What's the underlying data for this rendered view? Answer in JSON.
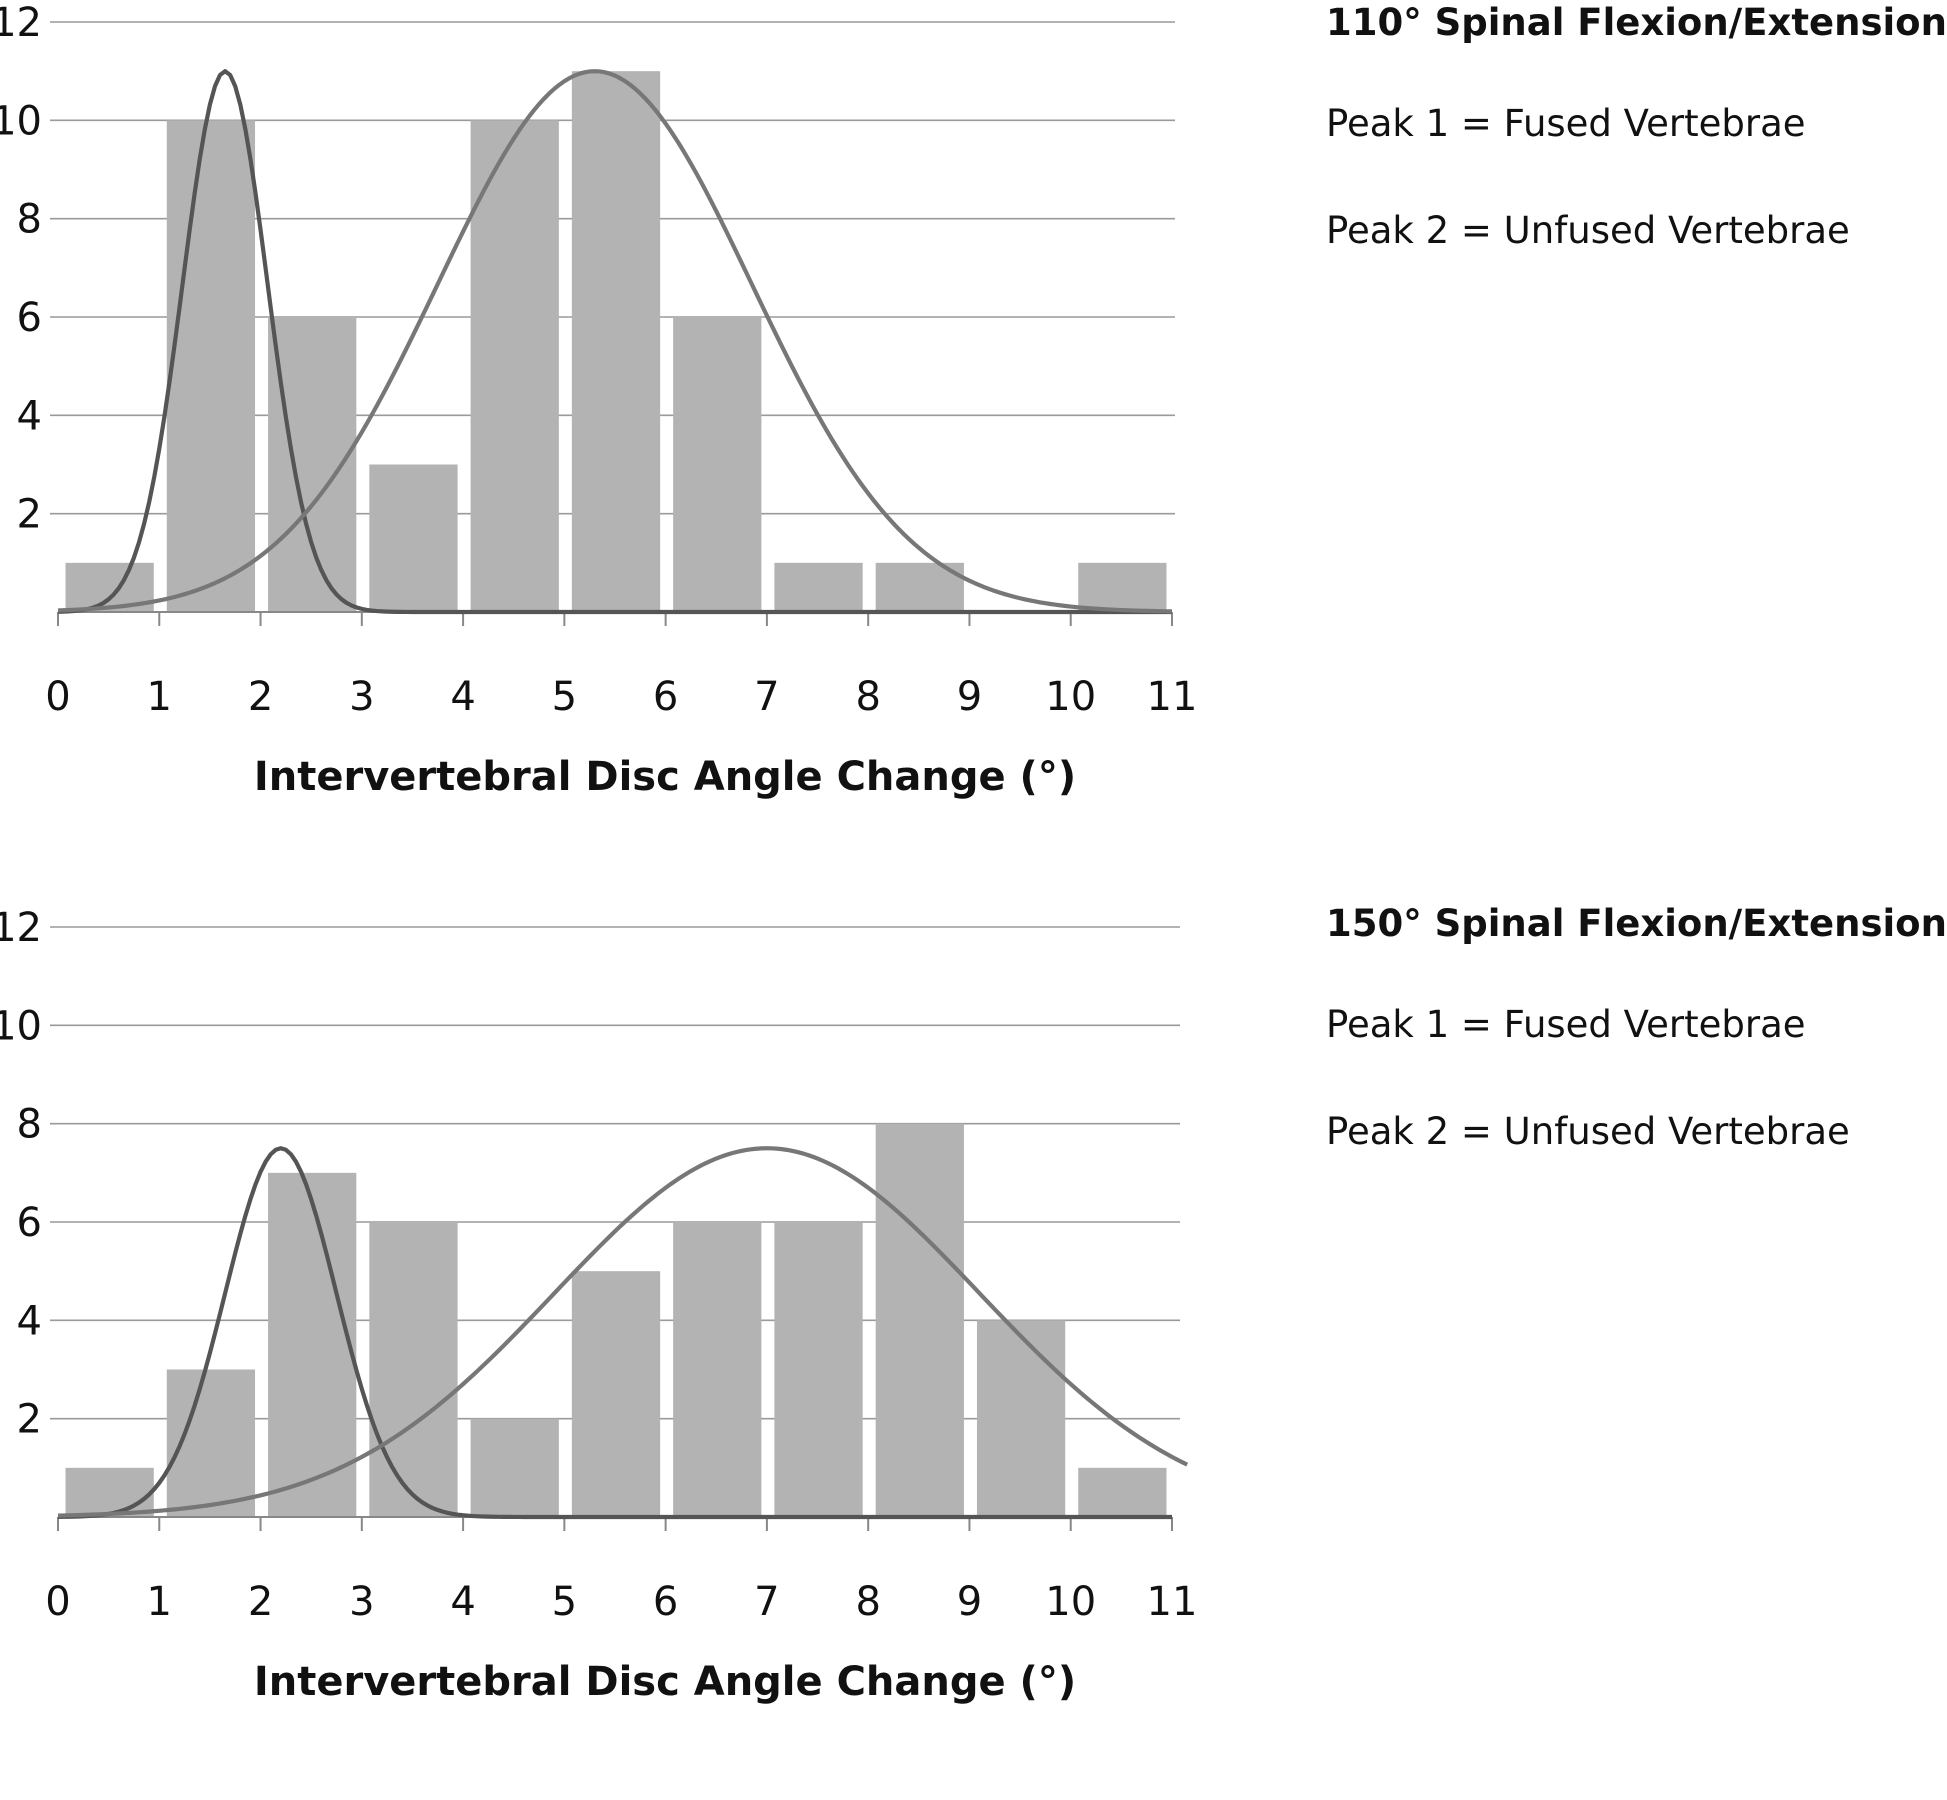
{
  "chart_data": [
    {
      "type": "bar",
      "title": "110° Spinal Flexion/Extension",
      "annotations": [
        "Peak 1 = Fused Vertebrae",
        "Peak 2 = Unfused Vertebrae"
      ],
      "xlabel": "Intervertebral Disc Angle Change (°)",
      "ylabel": "",
      "x_ticks": [
        "0",
        "1",
        "2",
        "3",
        "4",
        "5",
        "6",
        "7",
        "8",
        "9",
        "10",
        "11"
      ],
      "y_ticks": [
        "2",
        "4",
        "6",
        "8",
        "10",
        "12"
      ],
      "xlim": [
        0,
        11
      ],
      "ylim": [
        0,
        12
      ],
      "grid": true,
      "bins": [
        {
          "from": 0,
          "to": 1,
          "value": 1
        },
        {
          "from": 1,
          "to": 2,
          "value": 10
        },
        {
          "from": 2,
          "to": 3,
          "value": 6
        },
        {
          "from": 3,
          "to": 4,
          "value": 3
        },
        {
          "from": 4,
          "to": 5,
          "value": 10
        },
        {
          "from": 5,
          "to": 6,
          "value": 11
        },
        {
          "from": 6,
          "to": 7,
          "value": 6
        },
        {
          "from": 7,
          "to": 8,
          "value": 1
        },
        {
          "from": 8,
          "to": 9,
          "value": 1
        },
        {
          "from": 9,
          "to": 10,
          "value": 0
        },
        {
          "from": 10,
          "to": 11,
          "value": 1
        }
      ],
      "curves": [
        {
          "peak": 1,
          "mean": 1.65,
          "sd": 0.42,
          "height": 11.0,
          "color": "#555555"
        },
        {
          "peak": 2,
          "mean": 5.3,
          "sd": 1.55,
          "height": 11.0,
          "color": "#777777"
        }
      ],
      "bar_color": "#b3b3b3"
    },
    {
      "type": "bar",
      "title": "150° Spinal Flexion/Extension",
      "annotations": [
        "Peak 1 = Fused Vertebrae",
        "Peak 2 = Unfused Vertebrae"
      ],
      "xlabel": "Intervertebral Disc Angle Change (°)",
      "ylabel": "",
      "x_ticks": [
        "0",
        "1",
        "2",
        "3",
        "4",
        "5",
        "6",
        "7",
        "8",
        "9",
        "10",
        "11"
      ],
      "y_ticks": [
        "2",
        "4",
        "6",
        "8",
        "10",
        "12"
      ],
      "xlim": [
        0,
        11
      ],
      "ylim": [
        0,
        12
      ],
      "grid": true,
      "bins": [
        {
          "from": 0,
          "to": 1,
          "value": 1
        },
        {
          "from": 1,
          "to": 2,
          "value": 3
        },
        {
          "from": 2,
          "to": 3,
          "value": 7
        },
        {
          "from": 3,
          "to": 4,
          "value": 6
        },
        {
          "from": 4,
          "to": 5,
          "value": 2
        },
        {
          "from": 5,
          "to": 6,
          "value": 5
        },
        {
          "from": 6,
          "to": 7,
          "value": 6
        },
        {
          "from": 7,
          "to": 8,
          "value": 6
        },
        {
          "from": 8,
          "to": 9,
          "value": 8
        },
        {
          "from": 9,
          "to": 10,
          "value": 4
        },
        {
          "from": 10,
          "to": 11,
          "value": 1
        }
      ],
      "curves": [
        {
          "peak": 1,
          "mean": 2.2,
          "sd": 0.55,
          "height": 7.5,
          "color": "#555555"
        },
        {
          "peak": 2,
          "mean": 7.0,
          "sd": 2.1,
          "height": 7.5,
          "color": "#777777"
        }
      ],
      "bar_color": "#b3b3b3"
    }
  ]
}
